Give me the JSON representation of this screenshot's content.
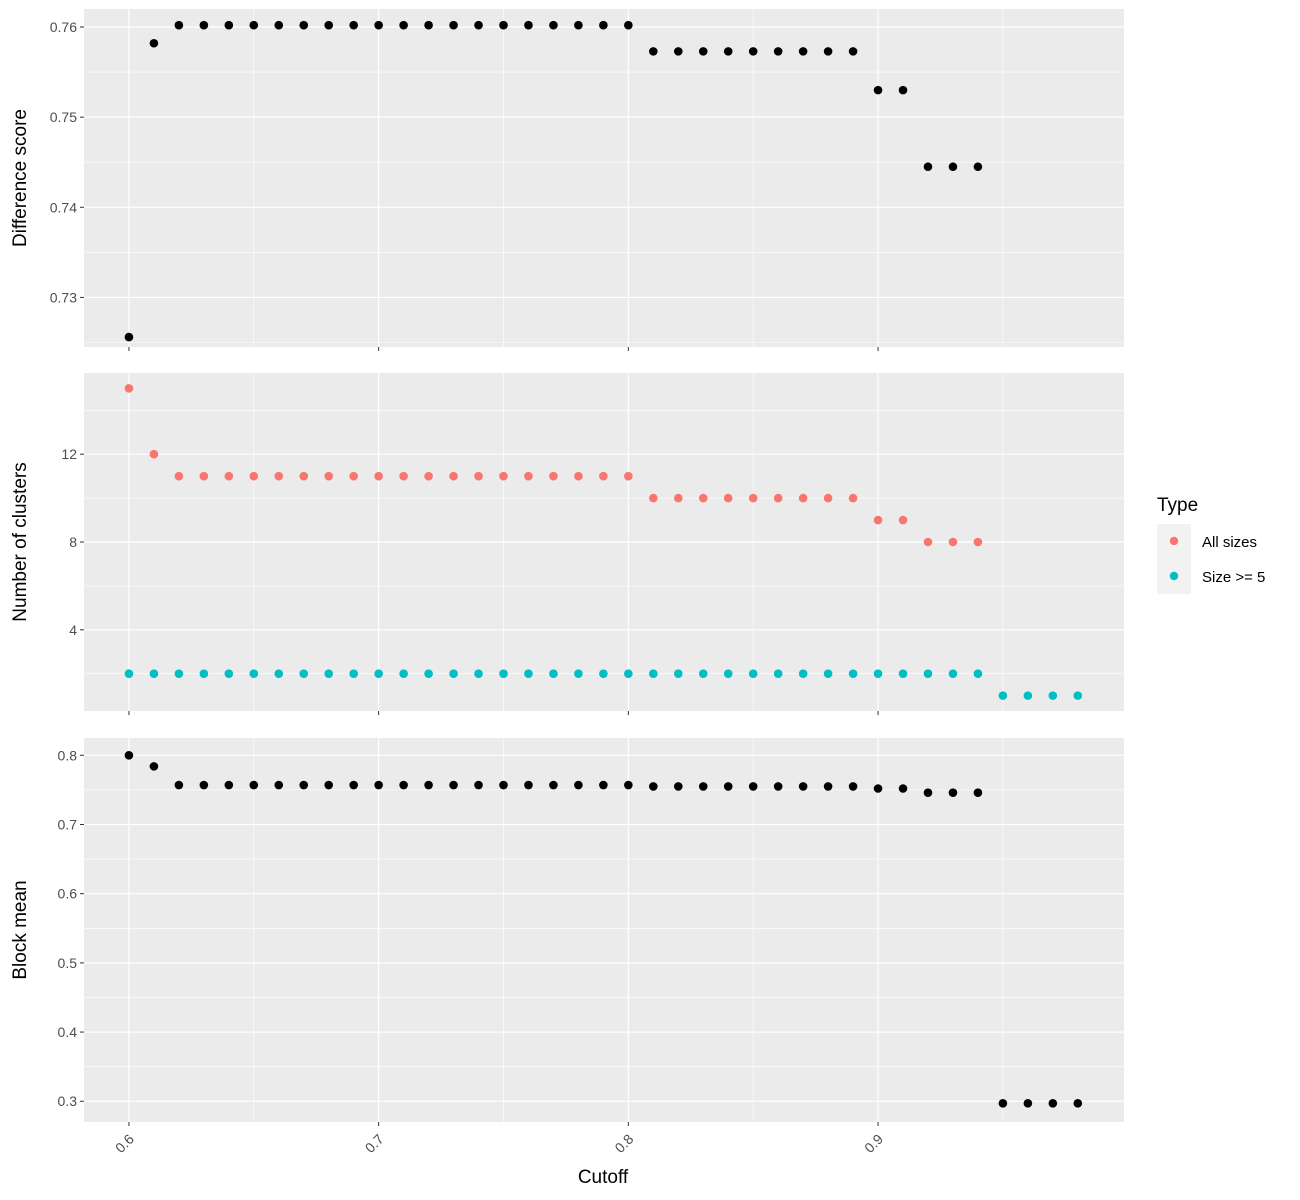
{
  "chart_data": {
    "type": "scatter",
    "facets": [
      {
        "ylabel": "Difference score",
        "ylim": [
          0.7245,
          0.762
        ],
        "yticks": [
          0.73,
          0.74,
          0.75,
          0.76
        ],
        "ytick_labels": [
          "0.73",
          "0.74",
          "0.75",
          "0.76"
        ],
        "series": [
          {
            "color": "#000000",
            "x": [
              0.6,
              0.61,
              0.62,
              0.63,
              0.64,
              0.65,
              0.66,
              0.67,
              0.68,
              0.69,
              0.7,
              0.71,
              0.72,
              0.73,
              0.74,
              0.75,
              0.76,
              0.77,
              0.78,
              0.79,
              0.8,
              0.81,
              0.82,
              0.83,
              0.84,
              0.85,
              0.86,
              0.87,
              0.88,
              0.89,
              0.9,
              0.91,
              0.92,
              0.93,
              0.94
            ],
            "y": [
              0.7256,
              0.7582,
              0.7602,
              0.7602,
              0.7602,
              0.7602,
              0.7602,
              0.7602,
              0.7602,
              0.7602,
              0.7602,
              0.7602,
              0.7602,
              0.7602,
              0.7602,
              0.7602,
              0.7602,
              0.7602,
              0.7602,
              0.7602,
              0.7602,
              0.7573,
              0.7573,
              0.7573,
              0.7573,
              0.7573,
              0.7573,
              0.7573,
              0.7573,
              0.7573,
              0.753,
              0.753,
              0.7445,
              0.7445,
              0.7445
            ]
          }
        ]
      },
      {
        "ylabel": "Number of clusters",
        "ylim": [
          0.3,
          15.7
        ],
        "yticks": [
          4,
          8,
          12
        ],
        "ytick_labels": [
          "4",
          "8",
          "12"
        ],
        "series": [
          {
            "name": "All sizes",
            "color": "#F8766D",
            "x": [
              0.6,
              0.61,
              0.62,
              0.63,
              0.64,
              0.65,
              0.66,
              0.67,
              0.68,
              0.69,
              0.7,
              0.71,
              0.72,
              0.73,
              0.74,
              0.75,
              0.76,
              0.77,
              0.78,
              0.79,
              0.8,
              0.81,
              0.82,
              0.83,
              0.84,
              0.85,
              0.86,
              0.87,
              0.88,
              0.89,
              0.9,
              0.91,
              0.92,
              0.93,
              0.94
            ],
            "y": [
              15,
              12,
              11,
              11,
              11,
              11,
              11,
              11,
              11,
              11,
              11,
              11,
              11,
              11,
              11,
              11,
              11,
              11,
              11,
              11,
              11,
              10,
              10,
              10,
              10,
              10,
              10,
              10,
              10,
              10,
              9,
              9,
              8,
              8,
              8
            ]
          },
          {
            "name": "Size >= 5",
            "color": "#00BFC4",
            "x": [
              0.6,
              0.61,
              0.62,
              0.63,
              0.64,
              0.65,
              0.66,
              0.67,
              0.68,
              0.69,
              0.7,
              0.71,
              0.72,
              0.73,
              0.74,
              0.75,
              0.76,
              0.77,
              0.78,
              0.79,
              0.8,
              0.81,
              0.82,
              0.83,
              0.84,
              0.85,
              0.86,
              0.87,
              0.88,
              0.89,
              0.9,
              0.91,
              0.92,
              0.93,
              0.94,
              0.95,
              0.96,
              0.97,
              0.98
            ],
            "y": [
              2,
              2,
              2,
              2,
              2,
              2,
              2,
              2,
              2,
              2,
              2,
              2,
              2,
              2,
              2,
              2,
              2,
              2,
              2,
              2,
              2,
              2,
              2,
              2,
              2,
              2,
              2,
              2,
              2,
              2,
              2,
              2,
              2,
              2,
              2,
              1,
              1,
              1,
              1
            ]
          }
        ]
      },
      {
        "ylabel": "Block mean",
        "ylim": [
          0.27,
          0.825
        ],
        "yticks": [
          0.3,
          0.4,
          0.5,
          0.6,
          0.7,
          0.8
        ],
        "ytick_labels": [
          "0.3",
          "0.4",
          "0.5",
          "0.6",
          "0.7",
          "0.8"
        ],
        "series": [
          {
            "color": "#000000",
            "x": [
              0.6,
              0.61,
              0.62,
              0.63,
              0.64,
              0.65,
              0.66,
              0.67,
              0.68,
              0.69,
              0.7,
              0.71,
              0.72,
              0.73,
              0.74,
              0.75,
              0.76,
              0.77,
              0.78,
              0.79,
              0.8,
              0.81,
              0.82,
              0.83,
              0.84,
              0.85,
              0.86,
              0.87,
              0.88,
              0.89,
              0.9,
              0.91,
              0.92,
              0.93,
              0.94,
              0.95,
              0.96,
              0.97,
              0.98
            ],
            "y": [
              0.8,
              0.784,
              0.757,
              0.757,
              0.757,
              0.757,
              0.757,
              0.757,
              0.757,
              0.757,
              0.757,
              0.757,
              0.757,
              0.757,
              0.757,
              0.757,
              0.757,
              0.757,
              0.757,
              0.757,
              0.757,
              0.755,
              0.755,
              0.755,
              0.755,
              0.755,
              0.755,
              0.755,
              0.755,
              0.755,
              0.752,
              0.752,
              0.746,
              0.746,
              0.746,
              0.297,
              0.297,
              0.297,
              0.297
            ]
          }
        ]
      }
    ],
    "xlabel": "Cutoff",
    "xlim": [
      0.582,
      0.9985
    ],
    "xticks": [
      0.6,
      0.7,
      0.8,
      0.9
    ],
    "xtick_labels": [
      "0.6",
      "0.7",
      "0.8",
      "0.9"
    ],
    "legend": {
      "title": "Type",
      "position": "right",
      "items": [
        {
          "label": "All sizes",
          "color": "#F8766D"
        },
        {
          "label": "Size >= 5",
          "color": "#00BFC4"
        }
      ]
    },
    "grid": true,
    "panel_background": "#EBEBEB"
  }
}
